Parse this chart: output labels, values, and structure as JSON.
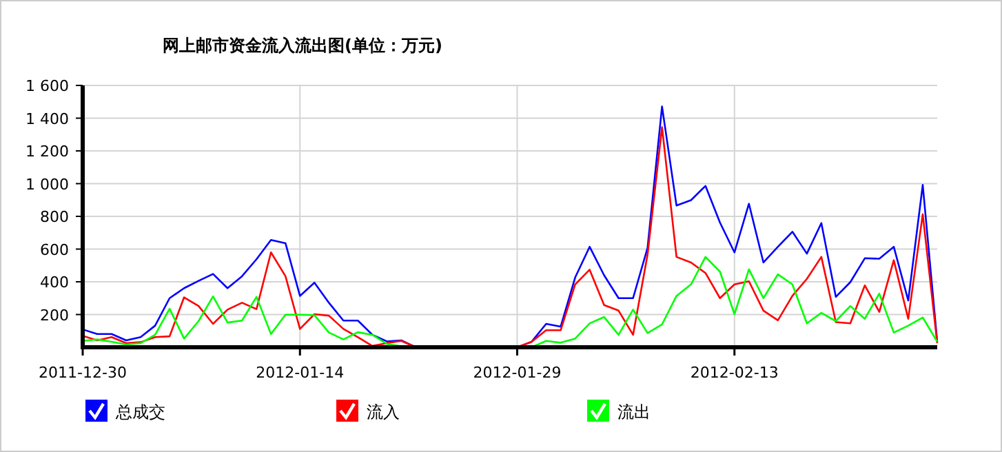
{
  "chart_data": {
    "type": "line",
    "title": "网上邮市资金流入流出图(单位：万元)",
    "x": [
      "2011-12-30",
      "2011-12-31",
      "2012-01-01",
      "2012-01-02",
      "2012-01-03",
      "2012-01-04",
      "2012-01-05",
      "2012-01-06",
      "2012-01-07",
      "2012-01-08",
      "2012-01-09",
      "2012-01-10",
      "2012-01-11",
      "2012-01-12",
      "2012-01-13",
      "2012-01-14",
      "2012-01-15",
      "2012-01-16",
      "2012-01-17",
      "2012-01-18",
      "2012-01-19",
      "2012-01-20",
      "2012-01-21",
      "2012-01-22",
      "2012-01-23",
      "2012-01-24",
      "2012-01-25",
      "2012-01-26",
      "2012-01-27",
      "2012-01-28",
      "2012-01-29",
      "2012-01-30",
      "2012-01-31",
      "2012-02-01",
      "2012-02-02",
      "2012-02-03",
      "2012-02-04",
      "2012-02-05",
      "2012-02-06",
      "2012-02-07",
      "2012-02-08",
      "2012-02-09",
      "2012-02-10",
      "2012-02-11",
      "2012-02-12",
      "2012-02-13",
      "2012-02-14",
      "2012-02-15",
      "2012-02-16",
      "2012-02-17",
      "2012-02-18",
      "2012-02-19",
      "2012-02-20",
      "2012-02-21",
      "2012-02-22",
      "2012-02-23",
      "2012-02-24",
      "2012-02-25",
      "2012-02-26",
      "2012-02-27"
    ],
    "series": [
      {
        "name": "总成交",
        "color": "#0000ff",
        "values": [
          109,
          81,
          81,
          42,
          62,
          132,
          300,
          361,
          406,
          448,
          361,
          434,
          538,
          656,
          636,
          314,
          395,
          272,
          163,
          163,
          76,
          36,
          42,
          0,
          0,
          0,
          0,
          0,
          0,
          0,
          0,
          34,
          143,
          126,
          426,
          614,
          440,
          300,
          300,
          608,
          1471,
          866,
          899,
          986,
          762,
          580,
          877,
          518,
          614,
          706,
          572,
          759,
          308,
          398,
          544,
          541,
          614,
          286,
          992,
          34
        ]
      },
      {
        "name": "流入",
        "color": "#ff0000",
        "values": [
          70,
          42,
          62,
          25,
          31,
          62,
          67,
          305,
          252,
          143,
          230,
          272,
          233,
          580,
          434,
          112,
          202,
          193,
          112,
          62,
          8,
          25,
          39,
          0,
          0,
          0,
          0,
          0,
          0,
          0,
          0,
          34,
          104,
          104,
          384,
          474,
          258,
          224,
          76,
          566,
          1345,
          552,
          518,
          454,
          300,
          384,
          403,
          224,
          165,
          314,
          418,
          552,
          154,
          146,
          378,
          216,
          532,
          174,
          813,
          25
        ]
      },
      {
        "name": "流出",
        "color": "#00ff00",
        "values": [
          39,
          48,
          34,
          17,
          25,
          76,
          235,
          53,
          160,
          311,
          151,
          163,
          308,
          81,
          199,
          199,
          196,
          90,
          48,
          92,
          76,
          20,
          6,
          0,
          0,
          0,
          0,
          0,
          0,
          0,
          0,
          0,
          39,
          28,
          53,
          146,
          185,
          76,
          230,
          87,
          140,
          314,
          384,
          552,
          462,
          202,
          476,
          300,
          446,
          384,
          146,
          210,
          160,
          252,
          174,
          328,
          90,
          132,
          182,
          34
        ]
      }
    ],
    "xlim": [
      "2011-12-30",
      "2012-02-27"
    ],
    "xticks": [
      "2011-12-30",
      "2012-01-14",
      "2012-01-29",
      "2012-02-13"
    ],
    "ylim": [
      0,
      1600
    ],
    "yticks": [
      {
        "value": 200,
        "label": "200"
      },
      {
        "value": 400,
        "label": "400"
      },
      {
        "value": 600,
        "label": "600"
      },
      {
        "value": 800,
        "label": "800"
      },
      {
        "value": 1000,
        "label": "1 000"
      },
      {
        "value": 1200,
        "label": "1 200"
      },
      {
        "value": 1400,
        "label": "1 400"
      },
      {
        "value": 1600,
        "label": "1 600"
      }
    ],
    "grid": true,
    "legend": "bottom",
    "marker": "none",
    "line_style": "solid"
  }
}
